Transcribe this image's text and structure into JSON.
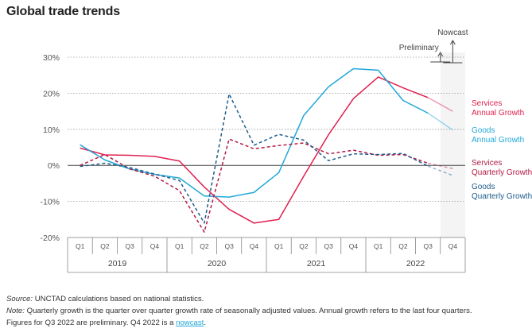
{
  "title": "Global trade trends",
  "chart_data": {
    "type": "line",
    "title": "Global trade trends",
    "y_ticks": [
      "30%",
      "20%",
      "10%",
      "0%",
      "-10%",
      "-20%"
    ],
    "y_tick_values": [
      30,
      20,
      10,
      0,
      -10,
      -20
    ],
    "ylim": [
      -20,
      30
    ],
    "gridlines": "dotted horizontal",
    "quarters": [
      "Q1",
      "Q2",
      "Q3",
      "Q4",
      "Q1",
      "Q2",
      "Q3",
      "Q4",
      "Q1",
      "Q2",
      "Q3",
      "Q4",
      "Q1",
      "Q2",
      "Q3",
      "Q4"
    ],
    "years": [
      "2019",
      "2020",
      "2021",
      "2022"
    ],
    "annotations": {
      "preliminary": "Preliminary",
      "nowcast": "Nowcast"
    },
    "series": [
      {
        "name_line1": "Services",
        "name_line2": "Annual Growth",
        "color": "#e0204f",
        "style": "solid",
        "values": [
          4.8,
          2.9,
          2.8,
          2.5,
          1.2,
          -6.0,
          -12.2,
          -16.0,
          -15.0,
          -3.0,
          8.5,
          18.5,
          24.5,
          21.5,
          18.8,
          15.0
        ]
      },
      {
        "name_line1": "Goods",
        "name_line2": "Annual Growth",
        "color": "#22a8d8",
        "style": "solid",
        "values": [
          5.7,
          1.5,
          -1.0,
          -2.5,
          -3.5,
          -8.5,
          -8.8,
          -7.5,
          -2.0,
          13.8,
          21.8,
          26.8,
          26.4,
          18.0,
          14.5,
          9.8
        ]
      },
      {
        "name_line1": "Services",
        "name_line2": "Quarterly Growth",
        "color": "#b21a45",
        "style": "dashed",
        "values": [
          0.0,
          3.0,
          -1.0,
          -3.0,
          -7.0,
          -18.5,
          7.3,
          4.6,
          5.5,
          6.2,
          3.2,
          4.2,
          2.8,
          3.0,
          0.6,
          -0.9
        ]
      },
      {
        "name_line1": "Goods",
        "name_line2": "Quarterly Growth",
        "color": "#1c5c8c",
        "style": "dashed",
        "values": [
          -0.3,
          0.6,
          -0.6,
          -2.4,
          -4.2,
          -16.0,
          19.8,
          5.6,
          8.6,
          7.0,
          1.3,
          3.2,
          3.0,
          3.3,
          -0.2,
          -2.8
        ]
      }
    ]
  },
  "source": {
    "source_label": "Source:",
    "source_text": " UNCTAD calculations based on national statistics.",
    "note_label": "Note:",
    "note_text": " Quarterly growth is the quarter over quarter growth rate of seasonally adjusted values. Annual growth refers to the last four quarters.",
    "line3_text": "Figures for Q3 2022 are preliminary. Q4 2022 is a ",
    "link_text": "nowcast",
    "line3_end": "."
  }
}
